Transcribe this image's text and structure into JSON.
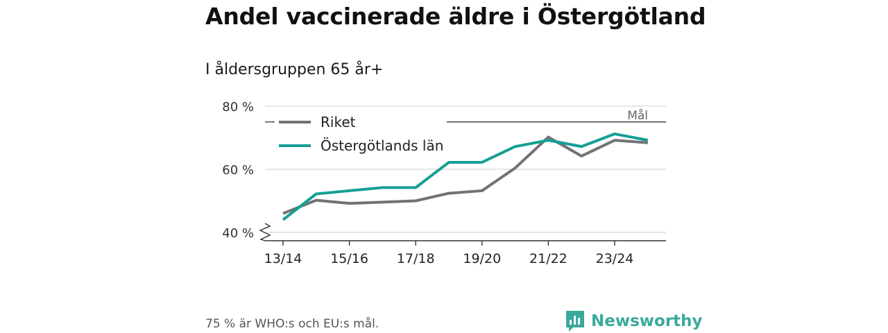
{
  "chart_data": {
    "type": "line",
    "title": "Andel vaccinerade äldre i Östergötland",
    "subtitle": "I åldersgruppen 65 år+",
    "x": [
      0,
      1,
      2,
      3,
      4,
      5,
      6,
      7,
      8,
      9,
      10,
      11
    ],
    "x_tick_labels": [
      {
        "x": 0,
        "label": "13/14"
      },
      {
        "x": 2,
        "label": "15/16"
      },
      {
        "x": 4,
        "label": "17/18"
      },
      {
        "x": 6,
        "label": "19/20"
      },
      {
        "x": 8,
        "label": "21/22"
      },
      {
        "x": 10,
        "label": "23/24"
      }
    ],
    "y_ticks": [
      40,
      60,
      80
    ],
    "y_tick_labels": [
      "40 %",
      "60 %",
      "80 %"
    ],
    "ylim": [
      37.5,
      80
    ],
    "y_axis_broken": true,
    "series": [
      {
        "name": "Riket",
        "color": "#727276",
        "values": [
          46,
          50.2,
          49.2,
          49.6,
          50,
          52.4,
          53.2,
          60.4,
          70.2,
          64.2,
          69.2,
          68.4
        ]
      },
      {
        "name": "Östergötlands län",
        "color": "#159f95",
        "values": [
          44,
          52.2,
          53.2,
          54.2,
          54.2,
          62.2,
          62.2,
          67.2,
          69.2,
          67.2,
          71.2,
          69.2
        ]
      }
    ],
    "target": {
      "value": 75,
      "label": "Mål"
    },
    "legend_position": "top-left",
    "grid": true
  },
  "footnote": "75 % är WHO:s och EU:s mål.",
  "brand": {
    "name": "Newsworthy",
    "icon": "newsworthy-logo-icon",
    "color": "#3aa99c"
  }
}
